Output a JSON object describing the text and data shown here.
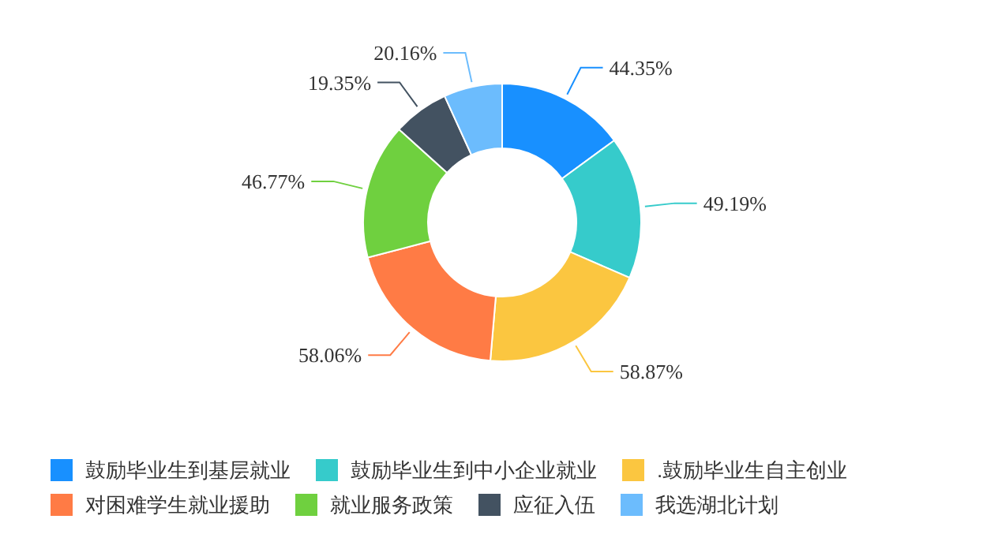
{
  "chart_data": {
    "type": "donut",
    "categories": [
      "鼓励毕业生到基层就业",
      "鼓励毕业生到中小企业就业",
      ".鼓励毕业生自主创业",
      "对困难学生就业援助",
      "就业服务政策",
      "应征入伍",
      "我选湖北计划"
    ],
    "values": [
      44.35,
      49.19,
      58.87,
      58.06,
      46.77,
      19.35,
      20.16
    ],
    "colors": [
      "#1890ff",
      "#36cbcb",
      "#fbc640",
      "#ff7b45",
      "#6fd03f",
      "#435261",
      "#6cbcfd"
    ],
    "value_labels": [
      "44.35%",
      "49.19%",
      "58.87%",
      "58.06%",
      "46.77%",
      "19.35%",
      "20.16%"
    ],
    "legend": "bottom"
  }
}
